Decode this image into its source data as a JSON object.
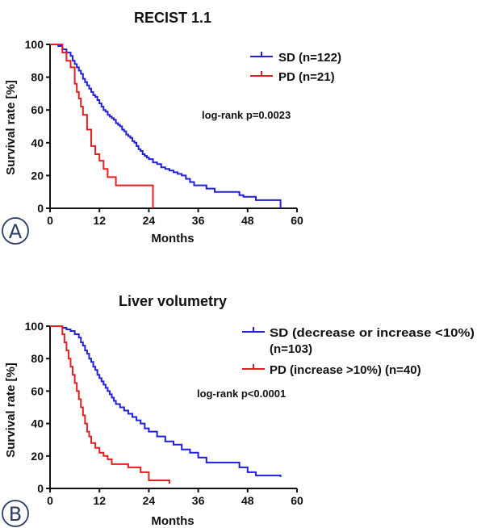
{
  "chart_data": [
    {
      "type": "line",
      "step": true,
      "panel_label": "A",
      "title": "RECIST 1.1",
      "xlabel": "Months",
      "ylabel": "Survival rate [%]",
      "xlim": [
        0,
        60
      ],
      "ylim": [
        0,
        100
      ],
      "xticks": [
        0,
        12,
        24,
        36,
        48,
        60
      ],
      "yticks": [
        0,
        20,
        40,
        60,
        80,
        100
      ],
      "grid": false,
      "legend_position": "top-right",
      "annotation": "log-rank p=0.0023",
      "series": [
        {
          "name": "SD (n=122)",
          "color": "#2020d8",
          "x": [
            0,
            2,
            3,
            4,
            5,
            5.5,
            6,
            6.5,
            7,
            7.5,
            8,
            8.5,
            9,
            9.5,
            10,
            10.5,
            11,
            11.5,
            12,
            12.5,
            13,
            13.5,
            14,
            14.5,
            15,
            15.5,
            16,
            16.5,
            17,
            17.5,
            18,
            18.5,
            19,
            19.5,
            20,
            20.5,
            21,
            21.5,
            22,
            22.5,
            23,
            23.5,
            24,
            25,
            26,
            27,
            28,
            29,
            30,
            31,
            32,
            33,
            34,
            35,
            38,
            40,
            46,
            47,
            50,
            56
          ],
          "y": [
            100,
            99,
            97,
            95,
            93,
            90,
            88,
            86,
            84,
            82,
            79,
            77,
            75,
            73,
            71,
            69,
            68,
            66,
            64,
            62,
            60,
            59,
            57,
            56,
            55,
            54,
            52,
            51,
            50,
            48,
            47,
            45,
            44,
            43,
            41,
            40,
            38,
            36,
            35,
            33,
            32,
            31,
            30,
            28,
            27,
            25,
            24,
            23,
            22,
            21,
            20,
            18,
            16,
            14,
            12,
            10,
            8,
            7,
            5,
            0
          ]
        },
        {
          "name": "PD (n=21)",
          "color": "#e02020",
          "x": [
            0,
            3,
            4,
            5,
            6,
            6.5,
            7,
            7.5,
            8,
            9,
            10,
            11,
            12,
            13,
            14,
            16,
            25
          ],
          "y": [
            100,
            95,
            90,
            86,
            76,
            71,
            67,
            62,
            57,
            48,
            38,
            33,
            29,
            24,
            19,
            14,
            0
          ]
        }
      ]
    },
    {
      "type": "line",
      "step": true,
      "panel_label": "B",
      "title": "Liver volumetry",
      "xlabel": "Months",
      "ylabel": "Survival rate [%]",
      "xlim": [
        0,
        60
      ],
      "ylim": [
        0,
        100
      ],
      "xticks": [
        0,
        12,
        24,
        36,
        48,
        60
      ],
      "yticks": [
        0,
        20,
        40,
        60,
        80,
        100
      ],
      "grid": false,
      "legend_position": "top-right",
      "annotation": "log-rank p<0.0001",
      "series": [
        {
          "name": "SD (decrease or increase <10%)",
          "name_line2": "(n=103)",
          "color": "#2020d8",
          "x": [
            0,
            3,
            4,
            5,
            6,
            7,
            7.5,
            8,
            8.5,
            9,
            9.5,
            10,
            10.5,
            11,
            11.5,
            12,
            12.5,
            13,
            13.5,
            14,
            14.5,
            15,
            15.5,
            16,
            17,
            18,
            19,
            20,
            21,
            22,
            23,
            24,
            26,
            28,
            30,
            32,
            34,
            36,
            38,
            46,
            48,
            50,
            56
          ],
          "y": [
            100,
            99,
            98,
            97,
            95,
            93,
            90,
            88,
            85,
            83,
            80,
            78,
            75,
            73,
            70,
            68,
            66,
            64,
            62,
            60,
            58,
            56,
            54,
            52,
            50,
            48,
            46,
            44,
            42,
            40,
            37,
            35,
            32,
            29,
            27,
            24,
            22,
            19,
            16,
            13,
            10,
            8,
            7
          ]
        },
        {
          "name": "PD (increase >10%) (n=40)",
          "color": "#e02020",
          "x": [
            0,
            3,
            3.5,
            4,
            4.5,
            5,
            5.5,
            6,
            6.5,
            7,
            7.5,
            8,
            8.5,
            9,
            9.5,
            10,
            11,
            12,
            13,
            14,
            15,
            19,
            22,
            24,
            29
          ],
          "y": [
            100,
            95,
            90,
            85,
            80,
            75,
            70,
            65,
            60,
            55,
            50,
            45,
            40,
            35,
            32,
            28,
            25,
            22,
            20,
            18,
            15,
            13,
            10,
            5,
            3
          ]
        }
      ]
    }
  ]
}
